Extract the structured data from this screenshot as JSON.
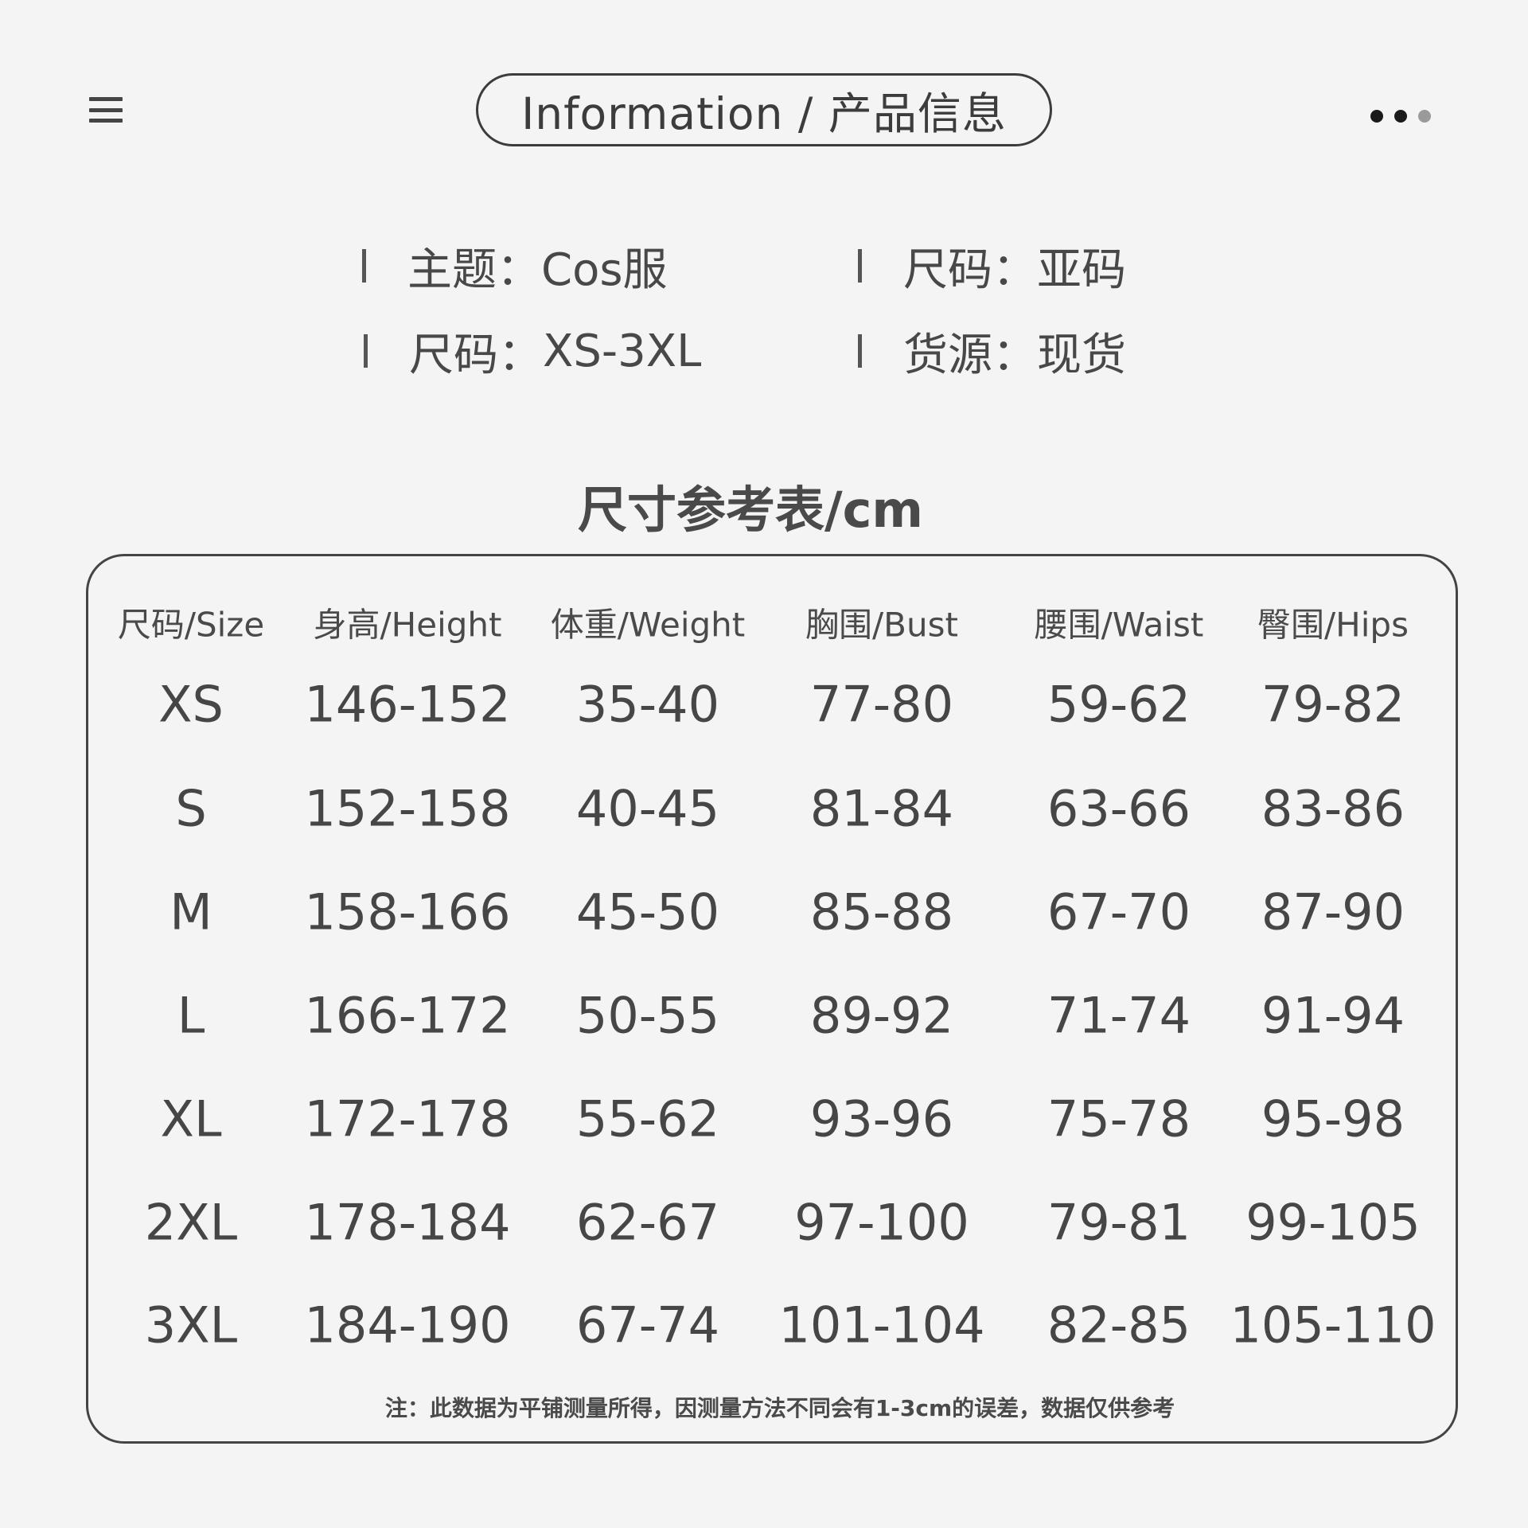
{
  "header": {
    "title": "Information / 产品信息",
    "menu_icon": "hamburger-menu-icon",
    "more_icon": "more-dots-icon"
  },
  "info": [
    {
      "label": "主题：",
      "value": "Cos服"
    },
    {
      "label": "尺码：",
      "value": "亚码"
    },
    {
      "label": "尺码：",
      "value": "XS-3XL"
    },
    {
      "label": "货源：",
      "value": "现货"
    }
  ],
  "size_table": {
    "title": "尺寸参考表/cm",
    "columns": [
      "尺码/Size",
      "身高/Height",
      "体重/Weight",
      "胸围/Bust",
      "腰围/Waist",
      "臀围/Hips"
    ],
    "rows": [
      [
        "XS",
        "146-152",
        "35-40",
        "77-80",
        "59-62",
        "79-82"
      ],
      [
        "S",
        "152-158",
        "40-45",
        "81-84",
        "63-66",
        "83-86"
      ],
      [
        "M",
        "158-166",
        "45-50",
        "85-88",
        "67-70",
        "87-90"
      ],
      [
        "L",
        "166-172",
        "50-55",
        "89-92",
        "71-74",
        "91-94"
      ],
      [
        "XL",
        "172-178",
        "55-62",
        "93-96",
        "75-78",
        "95-98"
      ],
      [
        "2XL",
        "178-184",
        "62-67",
        "97-100",
        "79-81",
        "99-105"
      ],
      [
        "3XL",
        "184-190",
        "67-74",
        "101-104",
        "82-85",
        "105-110"
      ]
    ],
    "note": "注：此数据为平铺测量所得，因测量方法不同会有1-3cm的误差，数据仅供参考"
  },
  "colors": {
    "background": "#f4f4f4",
    "text": "#464646",
    "border": "#444444"
  }
}
